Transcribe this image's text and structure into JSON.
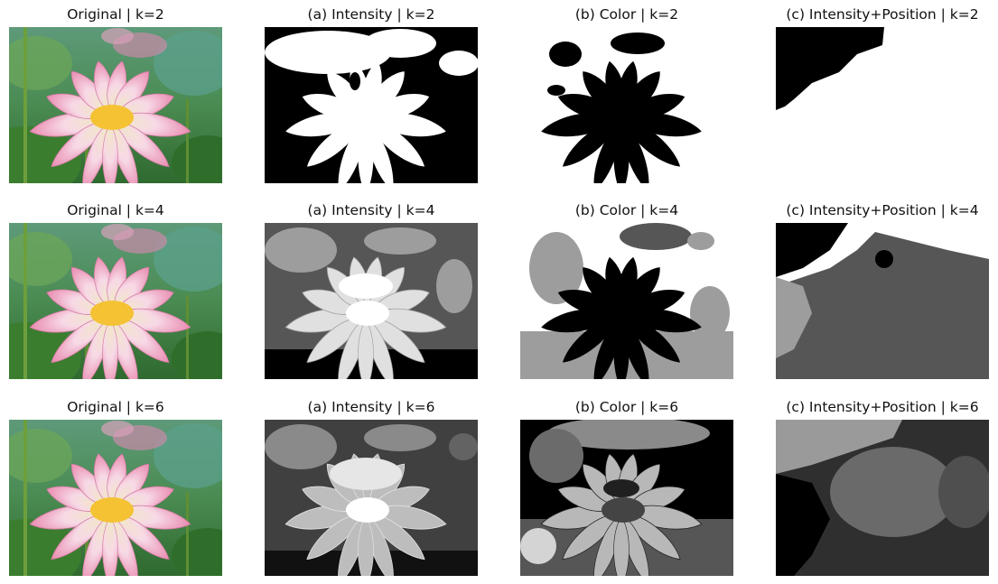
{
  "figure": {
    "rows": [
      {
        "k": 2,
        "panels": [
          {
            "title": "Original | k=2",
            "kind": "original"
          },
          {
            "title": "(a) Intensity | k=2",
            "kind": "intensity2"
          },
          {
            "title": "(b) Color | k=2",
            "kind": "color2"
          },
          {
            "title": "(c) Intensity+Position | k=2",
            "kind": "pos2"
          }
        ]
      },
      {
        "k": 4,
        "panels": [
          {
            "title": "Original | k=4",
            "kind": "original"
          },
          {
            "title": "(a) Intensity | k=4",
            "kind": "intensity4"
          },
          {
            "title": "(b) Color | k=4",
            "kind": "color4"
          },
          {
            "title": "(c) Intensity+Position | k=4",
            "kind": "pos4"
          }
        ]
      },
      {
        "k": 6,
        "panels": [
          {
            "title": "Original | k=6",
            "kind": "original"
          },
          {
            "title": "(a) Intensity | k=6",
            "kind": "intensity6"
          },
          {
            "title": "(b) Color | k=6",
            "kind": "color6"
          },
          {
            "title": "(c) Intensity+Position | k=6",
            "kind": "pos6"
          }
        ]
      }
    ]
  },
  "colors": {
    "background": "#ffffff",
    "title_text": "#111111",
    "petal_pink": "#e98bb0",
    "petal_light": "#f7d9e6",
    "petal_cream": "#f1e6c9",
    "center_yellow": "#f4c233",
    "leaf_green": "#3f7f35",
    "leaf_dark": "#27582a",
    "bg_teal": "#4f8d68"
  }
}
